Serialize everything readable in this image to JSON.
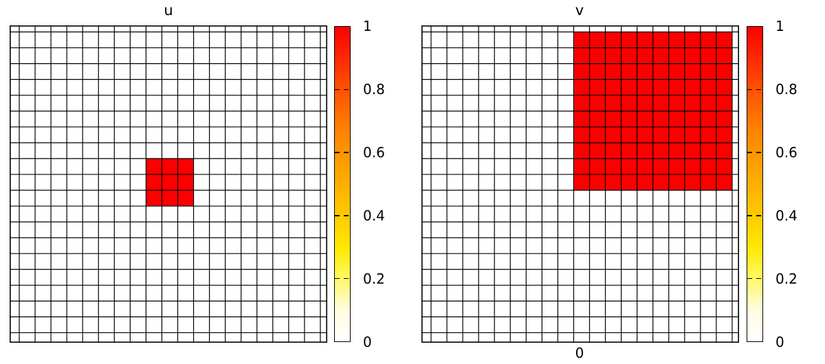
{
  "figure": {
    "background": "#ffffff",
    "line_color": "#000000",
    "bottom_label": "0"
  },
  "panels": [
    {
      "title": "u"
    },
    {
      "title": "v"
    }
  ],
  "colorbar": {
    "tick_values": [
      0,
      0.2,
      0.4,
      0.6,
      0.8,
      1
    ],
    "tick_labels": [
      "0",
      "0.2",
      "0.4",
      "0.6",
      "0.8",
      "1"
    ],
    "gradient_stops": [
      {
        "value": 0.0,
        "color": "#ffffff"
      },
      {
        "value": 0.1,
        "color": "#fffce0"
      },
      {
        "value": 0.22,
        "color": "#fff64e"
      },
      {
        "value": 0.3,
        "color": "#ffe800"
      },
      {
        "value": 0.42,
        "color": "#ffc400"
      },
      {
        "value": 0.55,
        "color": "#ffa200"
      },
      {
        "value": 0.68,
        "color": "#ff8000"
      },
      {
        "value": 0.82,
        "color": "#ff4a00"
      },
      {
        "value": 0.93,
        "color": "#fd1d00"
      },
      {
        "value": 1.0,
        "color": "#fc0000"
      }
    ]
  },
  "chart_data": [
    {
      "type": "heatmap",
      "title": "u",
      "grid_cols": 20,
      "grid_rows": 20,
      "value_range": [
        0,
        1
      ],
      "background_value": 0,
      "block_color": "#fc0000",
      "grid_on": true,
      "legend_position": "right-colorbar",
      "colorbar_ticks": [
        "0",
        "0.2",
        "0.4",
        "0.6",
        "0.8",
        "1"
      ],
      "blocks": [
        {
          "value": 1,
          "v_line_from": 8,
          "v_line_to": 11,
          "h_line_from": 8,
          "h_line_to": 11,
          "cells": "3x3 block of value 1 near grid center, columns 10-12, rows 10-12 counted from top-left; all other cells 0"
        }
      ]
    },
    {
      "type": "heatmap",
      "title": "v",
      "grid_cols": 20,
      "grid_rows": 20,
      "value_range": [
        0,
        1
      ],
      "background_value": 0,
      "block_color": "#fc0000",
      "grid_on": true,
      "legend_position": "right-colorbar",
      "colorbar_ticks": [
        "0",
        "0.2",
        "0.4",
        "0.6",
        "0.8",
        "1"
      ],
      "below_axis_label": "0",
      "blocks": [
        {
          "value": 1,
          "v_line_from": 9,
          "v_line_to": 19,
          "h_line_from": 0,
          "h_line_to": 10,
          "cells": "10x10 block of value 1 in upper-right region, columns 11-20, rows 2-11 counted from top-left; all other cells 0"
        }
      ]
    }
  ]
}
